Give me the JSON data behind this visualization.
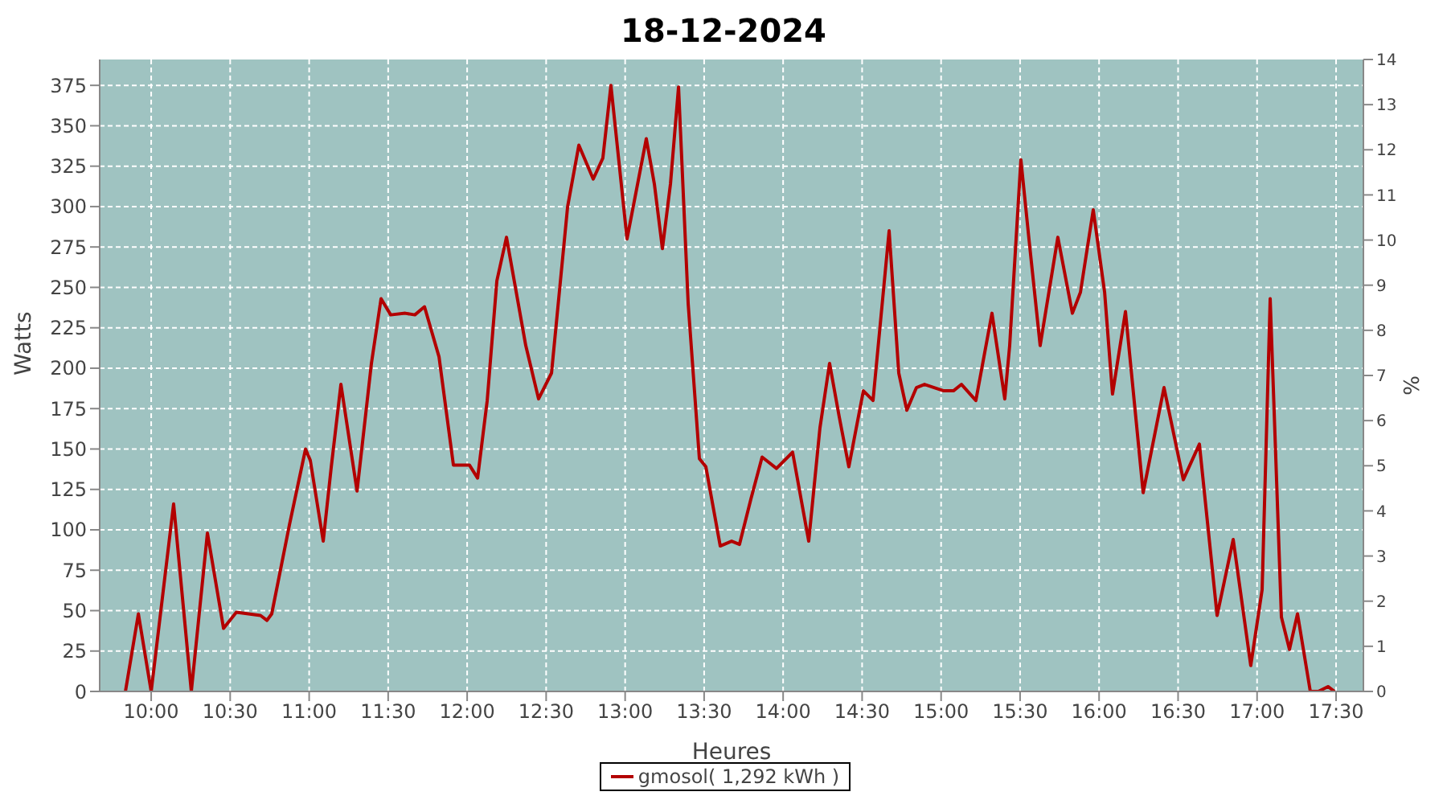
{
  "chart_data": {
    "type": "line",
    "title": "18-12-2024",
    "xlabel": "Heures",
    "ylabel": "Watts",
    "y2label": "%",
    "x": [
      9.837,
      9.919,
      10,
      10.142,
      10.254,
      10.356,
      10.458,
      10.539,
      10.692,
      10.733,
      10.763,
      10.875,
      10.977,
      11.007,
      11.089,
      11.14,
      11.201,
      11.303,
      11.394,
      11.455,
      11.516,
      11.608,
      11.669,
      11.73,
      11.822,
      11.913,
      12.015,
      12.066,
      12.127,
      12.188,
      12.249,
      12.371,
      12.452,
      12.534,
      12.636,
      12.707,
      12.798,
      12.859,
      12.91,
      13.012,
      13.134,
      13.185,
      13.236,
      13.287,
      13.338,
      13.399,
      13.47,
      13.511,
      13.602,
      13.674,
      13.724,
      13.796,
      13.867,
      13.958,
      14.06,
      14.162,
      14.233,
      14.294,
      14.355,
      14.416,
      14.508,
      14.569,
      14.671,
      14.732,
      14.783,
      14.844,
      14.895,
      15.017,
      15.078,
      15.129,
      15.22,
      15.322,
      15.403,
      15.434,
      15.505,
      15.556,
      15.627,
      15.739,
      15.831,
      15.882,
      15.963,
      16.035,
      16.085,
      16.167,
      16.279,
      16.411,
      16.533,
      16.635,
      16.747,
      16.849,
      16.96,
      17.032,
      17.083,
      17.154,
      17.205,
      17.256,
      17.337,
      17.388,
      17.449,
      17.49
    ],
    "series": [
      {
        "name": "gmosol( 1,292 kWh )",
        "color": "#b30000",
        "values": [
          0,
          48,
          0,
          116,
          0,
          98,
          39,
          49,
          47,
          44,
          48,
          103,
          150,
          143,
          93,
          139,
          190,
          124,
          203,
          243,
          233,
          234,
          233,
          238,
          207,
          140,
          140,
          132,
          180,
          254,
          281,
          214,
          181,
          197,
          300,
          338,
          317,
          330,
          375,
          280,
          342,
          314,
          274,
          314,
          374,
          240,
          144,
          139,
          90,
          93,
          91,
          119,
          145,
          138,
          148,
          93,
          163,
          203,
          170,
          139,
          186,
          180,
          285,
          197,
          174,
          188,
          190,
          186,
          186,
          190,
          180,
          234,
          181,
          214,
          329,
          280,
          214,
          281,
          234,
          247,
          298,
          247,
          184,
          235,
          123,
          188,
          131,
          153,
          47,
          94,
          16,
          63,
          243,
          46,
          26,
          48,
          0,
          0,
          3,
          0
        ]
      }
    ],
    "xlim": [
      9.674,
      17.673
    ],
    "xticks": [
      {
        "value": 10,
        "label": "10:00"
      },
      {
        "value": 10.5,
        "label": "10:30"
      },
      {
        "value": 11,
        "label": "11:00"
      },
      {
        "value": 11.5,
        "label": "11:30"
      },
      {
        "value": 12,
        "label": "12:00"
      },
      {
        "value": 12.5,
        "label": "12:30"
      },
      {
        "value": 13,
        "label": "13:00"
      },
      {
        "value": 13.5,
        "label": "13:30"
      },
      {
        "value": 14,
        "label": "14:00"
      },
      {
        "value": 14.5,
        "label": "14:30"
      },
      {
        "value": 15,
        "label": "15:00"
      },
      {
        "value": 15.5,
        "label": "15:30"
      },
      {
        "value": 16,
        "label": "16:00"
      },
      {
        "value": 16.5,
        "label": "16:30"
      },
      {
        "value": 17,
        "label": "17:00"
      },
      {
        "value": 17.5,
        "label": "17:30"
      }
    ],
    "ylim": [
      0,
      391
    ],
    "yticks": [
      0,
      25,
      50,
      75,
      100,
      125,
      150,
      175,
      200,
      225,
      250,
      275,
      300,
      325,
      350,
      375
    ],
    "y2lim": [
      0,
      14
    ],
    "y2ticks": [
      0,
      1,
      2,
      3,
      4,
      5,
      6,
      7,
      8,
      9,
      10,
      11,
      12,
      13,
      14
    ],
    "grid": true,
    "legend": "bottom",
    "marker": "none",
    "line_style": "solid"
  }
}
